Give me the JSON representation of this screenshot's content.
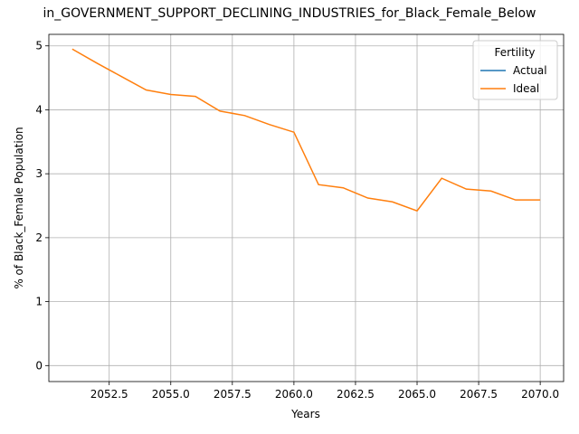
{
  "chart_data": {
    "type": "line",
    "title": "in_GOVERNMENT_SUPPORT_DECLINING_INDUSTRIES_for_Black_Female_Below",
    "xlabel": "Years",
    "ylabel": "% of Black_Female Population",
    "x": [
      2051,
      2052,
      2053,
      2054,
      2055,
      2056,
      2057,
      2058,
      2059,
      2060,
      2061,
      2062,
      2063,
      2064,
      2065,
      2066,
      2067,
      2068,
      2069,
      2070
    ],
    "series": [
      {
        "name": "Actual",
        "color": "#1f77b4",
        "values": [
          null,
          null,
          null,
          null,
          null,
          null,
          null,
          null,
          null,
          null,
          null,
          null,
          null,
          null,
          null,
          null,
          null,
          null,
          null,
          null
        ]
      },
      {
        "name": "Ideal",
        "color": "#ff7f0e",
        "values": [
          4.95,
          4.73,
          4.52,
          4.31,
          4.24,
          4.21,
          3.98,
          3.91,
          3.77,
          3.65,
          2.83,
          2.78,
          2.62,
          2.56,
          2.42,
          2.93,
          2.76,
          2.73,
          2.59,
          2.59
        ]
      }
    ],
    "xlim": [
      2050.05,
      2070.95
    ],
    "xticks": [
      2052.5,
      {
        "value": 2055,
        "label": "2055.0"
      },
      2057.5,
      {
        "value": 2060,
        "label": "2060.0"
      },
      2062.5,
      {
        "value": 2065,
        "label": "2065.0"
      },
      2067.5,
      {
        "value": 2070,
        "label": "2070.0"
      }
    ],
    "ylim": [
      -0.25,
      5.18
    ],
    "yticks": [
      0,
      1,
      2,
      3,
      4,
      5
    ],
    "grid": true,
    "legend_title": "Fertility",
    "legend": "upper right"
  }
}
